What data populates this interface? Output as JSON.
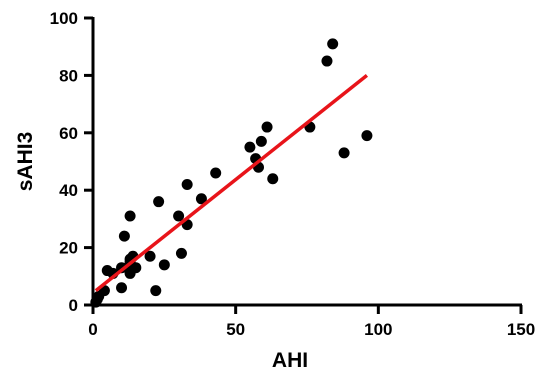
{
  "chart_data": {
    "type": "scatter",
    "xlabel": "AHI",
    "ylabel": "sAHI3",
    "xlim": [
      0,
      150
    ],
    "ylim": [
      0,
      100
    ],
    "x_ticks": [
      0,
      50,
      100,
      150
    ],
    "y_ticks": [
      0,
      20,
      40,
      60,
      80,
      100
    ],
    "grid": false,
    "legend": "none",
    "colors": {
      "points": "#000000",
      "fit_line": "#e8141a",
      "axes": "#000000"
    },
    "series": [
      {
        "points": [
          [
            1,
            1
          ],
          [
            1.5,
            2
          ],
          [
            2,
            3
          ],
          [
            4,
            5
          ],
          [
            5,
            12
          ],
          [
            7,
            11
          ],
          [
            10,
            6
          ],
          [
            10,
            13
          ],
          [
            11,
            24
          ],
          [
            12,
            13
          ],
          [
            13,
            11
          ],
          [
            13,
            15
          ],
          [
            13,
            16
          ],
          [
            13,
            31
          ],
          [
            14,
            17
          ],
          [
            15,
            13
          ],
          [
            20,
            17
          ],
          [
            22,
            5
          ],
          [
            23,
            36
          ],
          [
            25,
            14
          ],
          [
            30,
            31
          ],
          [
            31,
            18
          ],
          [
            33,
            28
          ],
          [
            33,
            42
          ],
          [
            38,
            37
          ],
          [
            43,
            46
          ],
          [
            55,
            55
          ],
          [
            57,
            51
          ],
          [
            58,
            48
          ],
          [
            59,
            57
          ],
          [
            61,
            62
          ],
          [
            63,
            44
          ],
          [
            76,
            62
          ],
          [
            82,
            85
          ],
          [
            84,
            91
          ],
          [
            88,
            53
          ],
          [
            96,
            59
          ]
        ]
      }
    ],
    "fit_line": {
      "x": [
        1,
        96
      ],
      "y": [
        5,
        80
      ]
    }
  }
}
